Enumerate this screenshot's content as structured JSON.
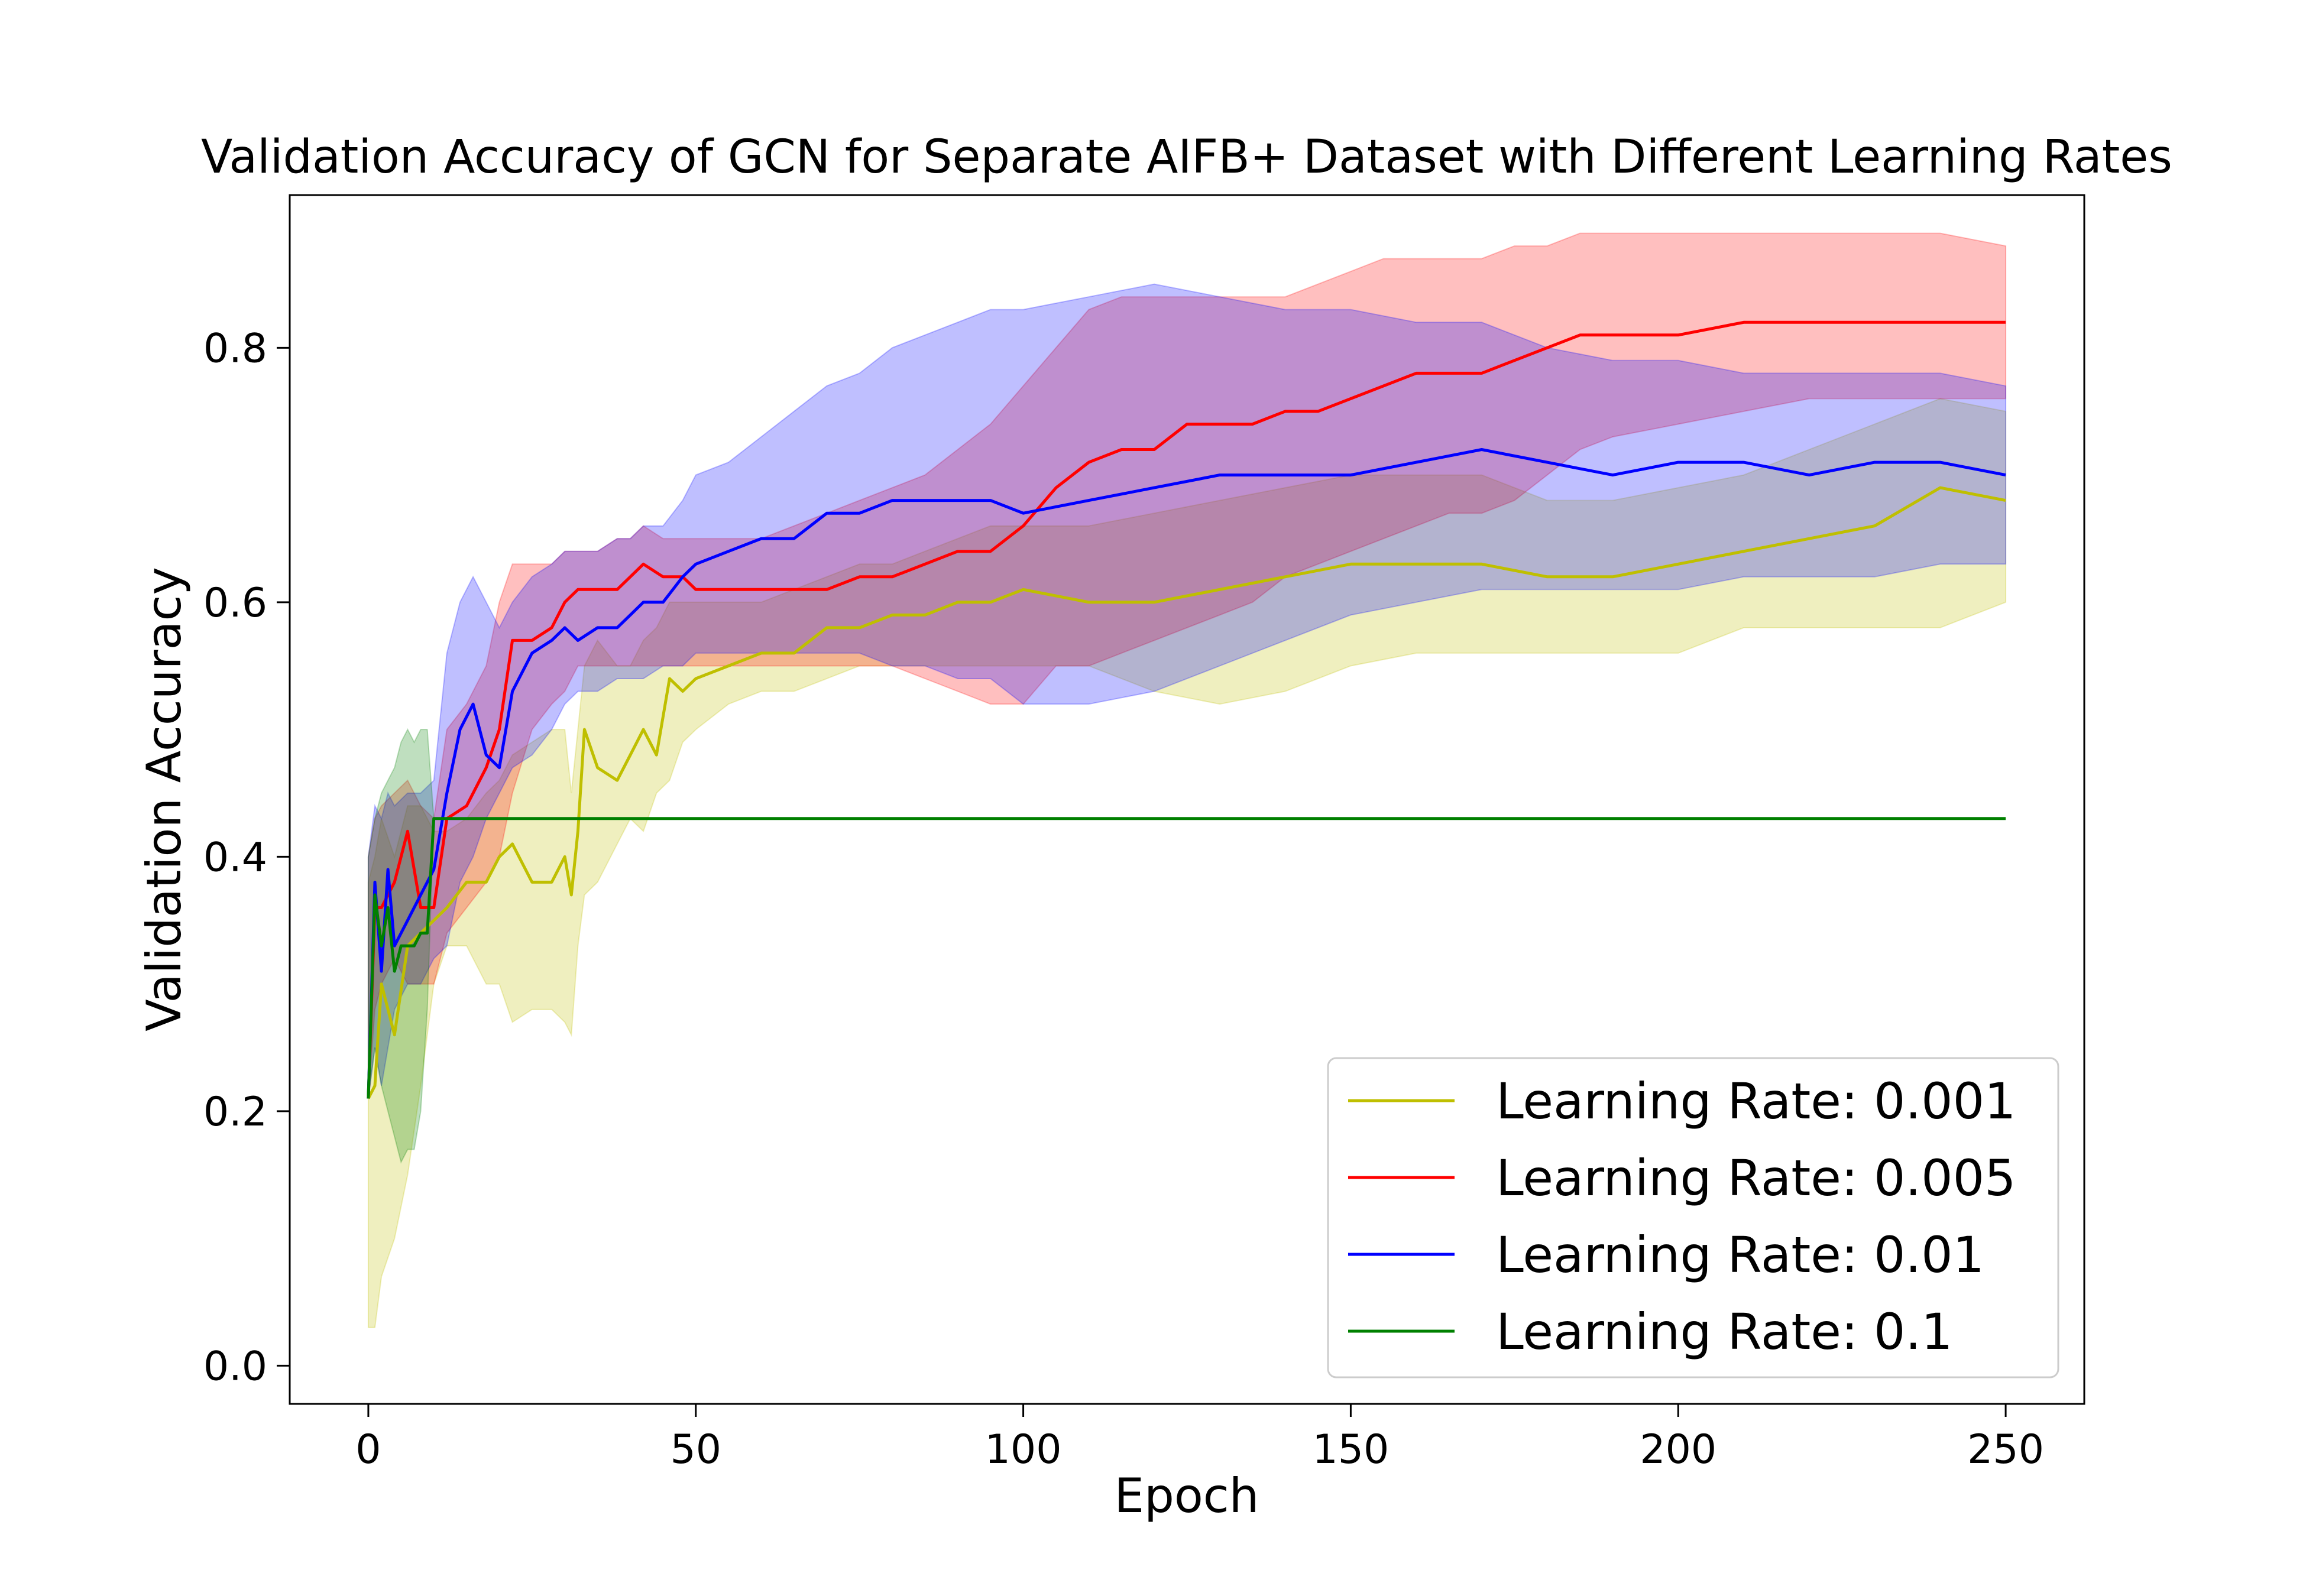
{
  "chart_data": {
    "type": "line",
    "title": "Validation Accuracy of GCN for Separate AIFB+ Dataset with Different Learning Rates",
    "xlabel": "Epoch",
    "ylabel": "Validation Accuracy",
    "xlim": [
      -12,
      262
    ],
    "ylim": [
      -0.03,
      0.92
    ],
    "xticks": [
      0,
      50,
      100,
      150,
      200,
      250
    ],
    "xtick_labels": [
      "0",
      "50",
      "100",
      "150",
      "200",
      "250"
    ],
    "yticks": [
      0.0,
      0.2,
      0.4,
      0.6,
      0.8
    ],
    "ytick_labels": [
      "0.0",
      "0.2",
      "0.4",
      "0.6",
      "0.8"
    ],
    "grid": false,
    "legend_position": "lower-right",
    "series": [
      {
        "name": "Learning Rate: 0.001",
        "color": "#bfbf00",
        "band_color": "#bfbf00",
        "x": [
          0,
          1,
          2,
          4,
          6,
          8,
          10,
          12,
          15,
          18,
          20,
          22,
          25,
          28,
          30,
          31,
          32,
          33,
          35,
          38,
          40,
          42,
          44,
          46,
          48,
          50,
          55,
          60,
          65,
          70,
          75,
          80,
          85,
          90,
          95,
          100,
          110,
          120,
          130,
          140,
          150,
          160,
          170,
          180,
          190,
          200,
          210,
          220,
          230,
          240,
          250
        ],
        "values": [
          0.21,
          0.22,
          0.3,
          0.26,
          0.33,
          0.34,
          0.35,
          0.36,
          0.38,
          0.38,
          0.4,
          0.41,
          0.38,
          0.38,
          0.4,
          0.37,
          0.42,
          0.5,
          0.47,
          0.46,
          0.48,
          0.5,
          0.48,
          0.54,
          0.53,
          0.54,
          0.55,
          0.56,
          0.56,
          0.58,
          0.58,
          0.59,
          0.59,
          0.6,
          0.6,
          0.61,
          0.6,
          0.6,
          0.61,
          0.62,
          0.63,
          0.63,
          0.63,
          0.62,
          0.62,
          0.63,
          0.64,
          0.65,
          0.66,
          0.69,
          0.68
        ],
        "lower": [
          0.03,
          0.03,
          0.07,
          0.1,
          0.15,
          0.22,
          0.3,
          0.33,
          0.33,
          0.3,
          0.3,
          0.27,
          0.28,
          0.28,
          0.27,
          0.26,
          0.33,
          0.37,
          0.38,
          0.41,
          0.43,
          0.42,
          0.45,
          0.46,
          0.49,
          0.5,
          0.52,
          0.53,
          0.53,
          0.54,
          0.55,
          0.55,
          0.55,
          0.55,
          0.55,
          0.55,
          0.55,
          0.53,
          0.52,
          0.53,
          0.55,
          0.56,
          0.56,
          0.56,
          0.56,
          0.56,
          0.58,
          0.58,
          0.58,
          0.58,
          0.6
        ],
        "upper": [
          0.38,
          0.4,
          0.43,
          0.4,
          0.44,
          0.44,
          0.42,
          0.42,
          0.43,
          0.45,
          0.46,
          0.48,
          0.49,
          0.5,
          0.5,
          0.45,
          0.5,
          0.55,
          0.57,
          0.55,
          0.55,
          0.57,
          0.58,
          0.6,
          0.6,
          0.6,
          0.6,
          0.6,
          0.61,
          0.62,
          0.63,
          0.63,
          0.64,
          0.65,
          0.66,
          0.66,
          0.66,
          0.67,
          0.68,
          0.69,
          0.7,
          0.7,
          0.7,
          0.68,
          0.68,
          0.69,
          0.7,
          0.72,
          0.74,
          0.76,
          0.75
        ]
      },
      {
        "name": "Learning Rate: 0.005",
        "color": "#ff0000",
        "band_color": "#ff0000",
        "x": [
          0,
          1,
          2,
          4,
          6,
          8,
          10,
          12,
          15,
          18,
          20,
          22,
          25,
          28,
          30,
          32,
          35,
          38,
          40,
          42,
          45,
          48,
          50,
          55,
          60,
          65,
          70,
          75,
          80,
          85,
          90,
          95,
          100,
          105,
          110,
          115,
          120,
          125,
          130,
          135,
          140,
          145,
          150,
          155,
          160,
          165,
          170,
          175,
          180,
          185,
          190,
          200,
          210,
          220,
          230,
          240,
          250
        ],
        "values": [
          0.21,
          0.36,
          0.36,
          0.38,
          0.42,
          0.36,
          0.36,
          0.43,
          0.44,
          0.47,
          0.5,
          0.57,
          0.57,
          0.58,
          0.6,
          0.61,
          0.61,
          0.61,
          0.62,
          0.63,
          0.62,
          0.62,
          0.61,
          0.61,
          0.61,
          0.61,
          0.61,
          0.62,
          0.62,
          0.63,
          0.64,
          0.64,
          0.66,
          0.69,
          0.71,
          0.72,
          0.72,
          0.74,
          0.74,
          0.74,
          0.75,
          0.75,
          0.76,
          0.77,
          0.78,
          0.78,
          0.78,
          0.79,
          0.8,
          0.81,
          0.81,
          0.81,
          0.82,
          0.82,
          0.82,
          0.82,
          0.82
        ],
        "lower": [
          0.21,
          0.28,
          0.3,
          0.32,
          0.3,
          0.3,
          0.3,
          0.34,
          0.36,
          0.38,
          0.4,
          0.45,
          0.5,
          0.52,
          0.53,
          0.55,
          0.55,
          0.55,
          0.55,
          0.55,
          0.55,
          0.55,
          0.55,
          0.55,
          0.55,
          0.55,
          0.55,
          0.55,
          0.55,
          0.54,
          0.53,
          0.52,
          0.52,
          0.55,
          0.55,
          0.56,
          0.57,
          0.58,
          0.59,
          0.6,
          0.62,
          0.63,
          0.64,
          0.65,
          0.66,
          0.67,
          0.67,
          0.68,
          0.7,
          0.72,
          0.73,
          0.74,
          0.75,
          0.76,
          0.76,
          0.76,
          0.76
        ],
        "upper": [
          0.4,
          0.43,
          0.44,
          0.45,
          0.46,
          0.44,
          0.43,
          0.5,
          0.52,
          0.55,
          0.6,
          0.63,
          0.63,
          0.63,
          0.64,
          0.64,
          0.64,
          0.65,
          0.65,
          0.66,
          0.65,
          0.65,
          0.65,
          0.65,
          0.65,
          0.66,
          0.67,
          0.68,
          0.69,
          0.7,
          0.72,
          0.74,
          0.77,
          0.8,
          0.83,
          0.84,
          0.84,
          0.84,
          0.84,
          0.84,
          0.84,
          0.85,
          0.86,
          0.87,
          0.87,
          0.87,
          0.87,
          0.88,
          0.88,
          0.89,
          0.89,
          0.89,
          0.89,
          0.89,
          0.89,
          0.89,
          0.88
        ]
      },
      {
        "name": "Learning Rate: 0.01",
        "color": "#0000ff",
        "band_color": "#0000ff",
        "x": [
          0,
          1,
          2,
          3,
          4,
          6,
          8,
          10,
          12,
          14,
          16,
          18,
          20,
          22,
          25,
          28,
          30,
          32,
          35,
          38,
          40,
          42,
          45,
          48,
          50,
          55,
          60,
          65,
          70,
          75,
          80,
          85,
          90,
          95,
          100,
          110,
          120,
          130,
          140,
          150,
          160,
          170,
          180,
          190,
          200,
          210,
          220,
          230,
          240,
          250
        ],
        "values": [
          0.21,
          0.38,
          0.31,
          0.39,
          0.33,
          0.35,
          0.37,
          0.39,
          0.45,
          0.5,
          0.52,
          0.48,
          0.47,
          0.53,
          0.56,
          0.57,
          0.58,
          0.57,
          0.58,
          0.58,
          0.59,
          0.6,
          0.6,
          0.62,
          0.63,
          0.64,
          0.65,
          0.65,
          0.67,
          0.67,
          0.68,
          0.68,
          0.68,
          0.68,
          0.67,
          0.68,
          0.69,
          0.7,
          0.7,
          0.7,
          0.71,
          0.72,
          0.71,
          0.7,
          0.71,
          0.71,
          0.7,
          0.71,
          0.71,
          0.7
        ],
        "lower": [
          0.21,
          0.25,
          0.22,
          0.25,
          0.28,
          0.3,
          0.3,
          0.32,
          0.33,
          0.38,
          0.4,
          0.43,
          0.45,
          0.47,
          0.48,
          0.5,
          0.52,
          0.53,
          0.53,
          0.54,
          0.54,
          0.54,
          0.55,
          0.55,
          0.56,
          0.56,
          0.56,
          0.56,
          0.56,
          0.56,
          0.55,
          0.55,
          0.54,
          0.54,
          0.52,
          0.52,
          0.53,
          0.55,
          0.57,
          0.59,
          0.6,
          0.61,
          0.61,
          0.61,
          0.61,
          0.62,
          0.62,
          0.62,
          0.63,
          0.63
        ],
        "upper": [
          0.4,
          0.44,
          0.43,
          0.45,
          0.44,
          0.45,
          0.45,
          0.46,
          0.56,
          0.6,
          0.62,
          0.6,
          0.58,
          0.6,
          0.62,
          0.63,
          0.64,
          0.64,
          0.64,
          0.65,
          0.65,
          0.66,
          0.66,
          0.68,
          0.7,
          0.71,
          0.73,
          0.75,
          0.77,
          0.78,
          0.8,
          0.81,
          0.82,
          0.83,
          0.83,
          0.84,
          0.85,
          0.84,
          0.83,
          0.83,
          0.82,
          0.82,
          0.8,
          0.79,
          0.79,
          0.78,
          0.78,
          0.78,
          0.78,
          0.77
        ]
      },
      {
        "name": "Learning Rate: 0.1",
        "color": "#008000",
        "band_color": "#008000",
        "x": [
          0,
          1,
          2,
          3,
          4,
          5,
          6,
          7,
          8,
          9,
          10,
          12,
          15,
          20,
          50,
          100,
          150,
          200,
          250
        ],
        "values": [
          0.21,
          0.37,
          0.33,
          0.36,
          0.31,
          0.33,
          0.33,
          0.33,
          0.34,
          0.34,
          0.43,
          0.43,
          0.43,
          0.43,
          0.43,
          0.43,
          0.43,
          0.43,
          0.43
        ],
        "lower": [
          0.21,
          0.25,
          0.22,
          0.2,
          0.18,
          0.16,
          0.17,
          0.17,
          0.2,
          0.28,
          0.43,
          0.43,
          0.43,
          0.43,
          0.43,
          0.43,
          0.43,
          0.43,
          0.43
        ],
        "upper": [
          0.4,
          0.43,
          0.45,
          0.46,
          0.47,
          0.49,
          0.5,
          0.49,
          0.5,
          0.5,
          0.43,
          0.43,
          0.43,
          0.43,
          0.43,
          0.43,
          0.43,
          0.43,
          0.43
        ]
      }
    ]
  }
}
